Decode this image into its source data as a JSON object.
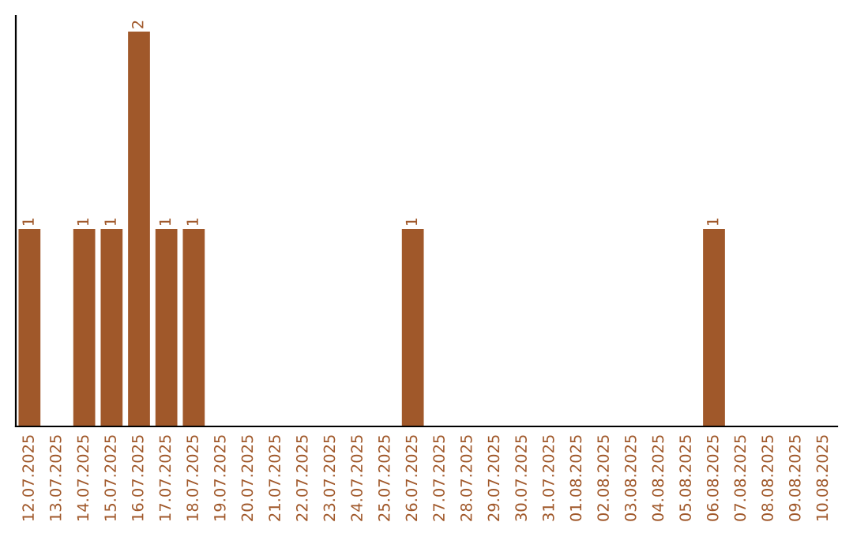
{
  "chart_data": {
    "type": "bar",
    "categories": [
      "12.07.2025",
      "13.07.2025",
      "14.07.2025",
      "15.07.2025",
      "16.07.2025",
      "17.07.2025",
      "18.07.2025",
      "19.07.2025",
      "20.07.2025",
      "21.07.2025",
      "22.07.2025",
      "23.07.2025",
      "24.07.2025",
      "25.07.2025",
      "26.07.2025",
      "27.07.2025",
      "28.07.2025",
      "29.07.2025",
      "30.07.2025",
      "31.07.2025",
      "01.08.2025",
      "02.08.2025",
      "03.08.2025",
      "04.08.2025",
      "05.08.2025",
      "06.08.2025",
      "07.08.2025",
      "08.08.2025",
      "09.08.2025",
      "10.08.2025"
    ],
    "values": [
      1,
      0,
      1,
      1,
      2,
      1,
      1,
      0,
      0,
      0,
      0,
      0,
      0,
      0,
      1,
      0,
      0,
      0,
      0,
      0,
      0,
      0,
      0,
      0,
      0,
      1,
      0,
      0,
      0,
      0
    ],
    "value_labels": [
      "1",
      null,
      "1",
      "1",
      "2",
      "1",
      "1",
      null,
      null,
      null,
      null,
      null,
      null,
      null,
      "1",
      null,
      null,
      null,
      null,
      null,
      null,
      null,
      null,
      null,
      null,
      "1",
      null,
      null,
      null,
      null
    ],
    "color": "#a0582a",
    "ylim": [
      0,
      2
    ],
    "tick_labels": "x",
    "grid": false,
    "legend": false
  }
}
